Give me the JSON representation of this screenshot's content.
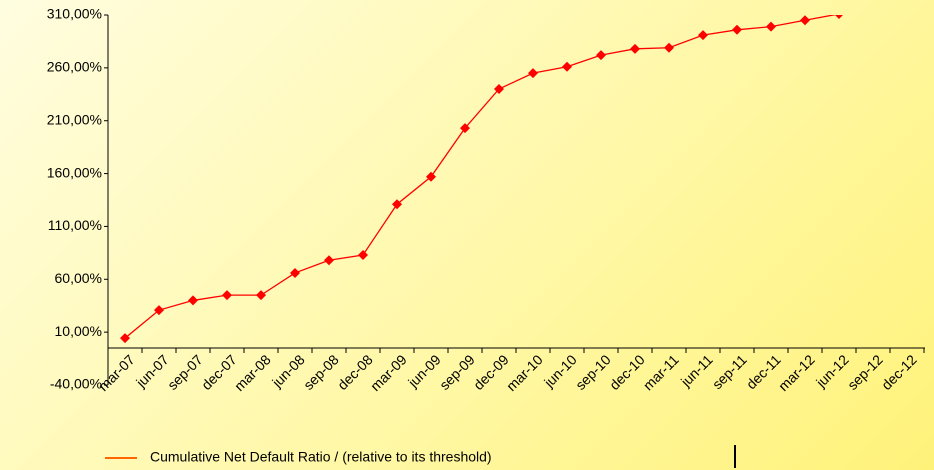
{
  "chart_data": {
    "type": "line",
    "categories": [
      "mar-07",
      "jun-07",
      "sep-07",
      "dec-07",
      "mar-08",
      "jun-08",
      "sep-08",
      "dec-08",
      "mar-09",
      "jun-09",
      "sep-09",
      "dec-09",
      "mar-10",
      "jun-10",
      "sep-10",
      "dec-10",
      "mar-11",
      "jun-11",
      "sep-11",
      "dec-11",
      "mar-12",
      "jun-12",
      "sep-12",
      "dec-12"
    ],
    "series": [
      {
        "name": "Cumulative Net Default Ratio / (relative to its threshold)",
        "color": "#ff0000",
        "legend_color": "#ff6600",
        "values": [
          4.3,
          30.8,
          40,
          45,
          45,
          66,
          78,
          83,
          131,
          157,
          203,
          240,
          255,
          261,
          272,
          278,
          279,
          291,
          296,
          299,
          305,
          311,
          null,
          null
        ]
      }
    ],
    "ylim": [
      -40,
      310
    ],
    "yticks": [
      {
        "value": -40,
        "label": "-40,00%"
      },
      {
        "value": 10,
        "label": "10,00%"
      },
      {
        "value": 60,
        "label": "60,00%"
      },
      {
        "value": 110,
        "label": "110,00%"
      },
      {
        "value": 160,
        "label": "160,00%"
      },
      {
        "value": 210,
        "label": "210,00%"
      },
      {
        "value": 260,
        "label": "260,00%"
      },
      {
        "value": 310,
        "label": "310,00%"
      }
    ]
  }
}
